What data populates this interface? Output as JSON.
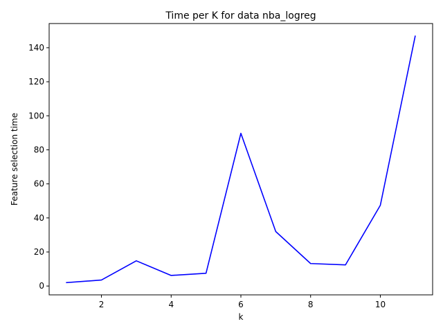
{
  "chart_data": {
    "type": "line",
    "title": "Time per K for data nba_logreg",
    "xlabel": "k",
    "ylabel": "Feature selection time",
    "x": [
      1,
      2,
      3,
      4,
      5,
      6,
      7,
      8,
      9,
      10,
      11
    ],
    "series": [
      {
        "values": [
          2.0,
          3.5,
          14.8,
          6.2,
          7.5,
          89.7,
          32.0,
          13.2,
          12.4,
          47.4,
          146.8
        ],
        "color": "#0000ff"
      }
    ],
    "xlim": [
      0.5,
      11.5
    ],
    "ylim": [
      -5.2,
      154.2
    ],
    "xticks": [
      2,
      4,
      6,
      8,
      10
    ],
    "xtick_labels": [
      "2",
      "4",
      "6",
      "8",
      "10"
    ],
    "yticks": [
      0,
      20,
      40,
      60,
      80,
      100,
      120,
      140
    ],
    "ytick_labels": [
      "0",
      "20",
      "40",
      "60",
      "80",
      "100",
      "120",
      "140"
    ],
    "grid": false,
    "legend": "none"
  }
}
